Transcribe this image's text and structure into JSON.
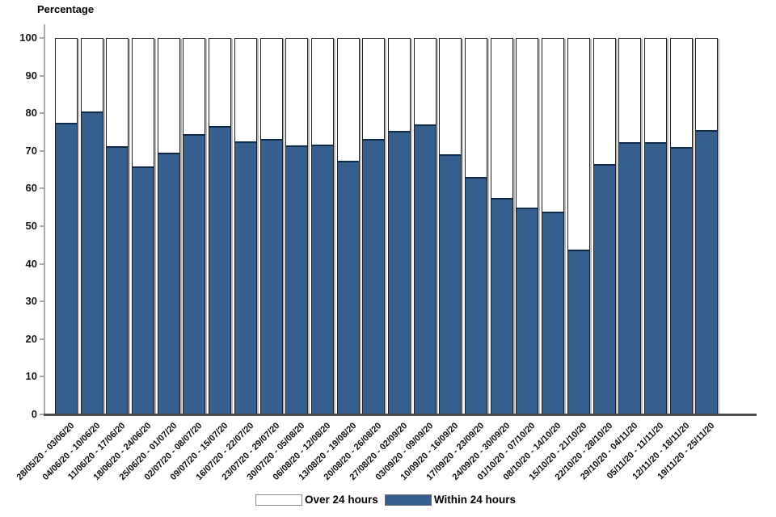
{
  "chart_data": {
    "type": "bar",
    "stacked": true,
    "title": "Percentage",
    "ylabel": "Percentage",
    "xlabel": "",
    "ylim": [
      0,
      100
    ],
    "yticks": [
      0,
      10,
      20,
      30,
      40,
      50,
      60,
      70,
      80,
      90,
      100
    ],
    "grid": false,
    "legend_position": "bottom",
    "colors": {
      "within_fill": "#365f8e",
      "over_fill": "#ffffff",
      "bar_border": "#1f1f1f",
      "blue_top_border": "#102a49",
      "axis_line": "#ababab",
      "baseline": "#4d4d4d",
      "bar_shadow": "#b8b8b8"
    },
    "categories": [
      "28/05/20 - 03/06/20",
      "04/06/20 - 10/06/20",
      "11/06/20 - 17/06/20",
      "18/06/20 - 24/06/20",
      "25/06/20 - 01/07/20",
      "02/07/20 - 08/07/20",
      "09/07/20 - 15/07/20",
      "16/07/20 - 22/07/20",
      "23/07/20 - 29/07/20",
      "30/07/20 - 05/08/20",
      "06/08/20 - 12/08/20",
      "13/08/20 - 19/08/20",
      "20/08/20 - 26/08/20",
      "27/08/20 - 02/09/20",
      "03/09/20 - 09/09/20",
      "10/09/20 - 16/09/20",
      "17/09/20 - 23/09/20",
      "24/09/20 - 30/09/20",
      "01/10/20 - 07/10/20",
      "08/10/20 - 14/10/20",
      "15/10/20 - 21/10/20",
      "22/10/20 - 28/10/20",
      "29/10/20 - 04/11/20",
      "05/11/20 - 11/11/20",
      "12/11/20 - 18/11/20",
      "19/11/20 - 25/11/20"
    ],
    "series": [
      {
        "name": "Over 24 hours",
        "color": "#ffffff",
        "values": [
          22.7,
          19.7,
          29.0,
          34.3,
          30.6,
          25.8,
          23.6,
          27.6,
          27.1,
          28.7,
          28.6,
          32.8,
          27.0,
          24.8,
          23.2,
          31.2,
          37.2,
          42.8,
          45.3,
          46.4,
          56.5,
          33.6,
          27.9,
          27.9,
          29.1,
          24.6
        ]
      },
      {
        "name": "Within 24 hours",
        "color": "#365f8e",
        "values": [
          77.3,
          80.3,
          71.0,
          65.7,
          69.4,
          74.2,
          76.4,
          72.4,
          72.9,
          71.3,
          71.4,
          67.2,
          73.0,
          75.2,
          76.8,
          68.8,
          62.8,
          57.2,
          54.7,
          53.6,
          43.5,
          66.4,
          72.1,
          72.1,
          70.9,
          75.4
        ]
      }
    ]
  }
}
